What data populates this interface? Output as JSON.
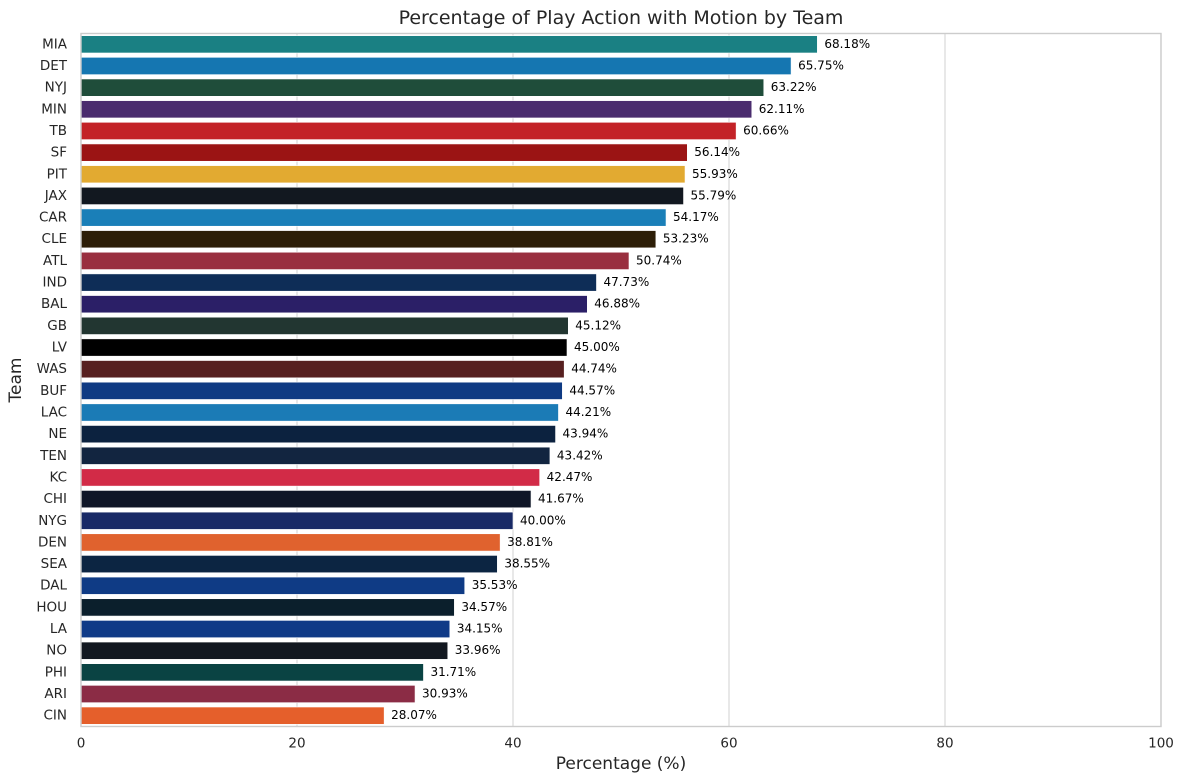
{
  "chart_data": {
    "type": "bar",
    "orientation": "horizontal",
    "title": "Percentage of Play Action with Motion by Team",
    "xlabel": "Percentage (%)",
    "ylabel": "Team",
    "xlim": [
      0,
      100
    ],
    "xticks": [
      "0",
      "20",
      "40",
      "60",
      "80",
      "100"
    ],
    "grid": "vertical",
    "categories": [
      "MIA",
      "DET",
      "NYJ",
      "MIN",
      "TB",
      "SF",
      "PIT",
      "JAX",
      "CAR",
      "CLE",
      "ATL",
      "IND",
      "BAL",
      "GB",
      "LV",
      "WAS",
      "BUF",
      "LAC",
      "NE",
      "TEN",
      "KC",
      "CHI",
      "NYG",
      "DEN",
      "SEA",
      "DAL",
      "HOU",
      "LA",
      "NO",
      "PHI",
      "ARI",
      "CIN"
    ],
    "values": [
      68.18,
      65.75,
      63.22,
      62.11,
      60.66,
      56.14,
      55.93,
      55.79,
      54.17,
      53.23,
      50.74,
      47.73,
      46.88,
      45.12,
      45.0,
      44.74,
      44.57,
      44.21,
      43.94,
      43.42,
      42.47,
      41.67,
      40.0,
      38.81,
      38.55,
      35.53,
      34.57,
      34.15,
      33.96,
      31.71,
      30.93,
      28.07
    ],
    "value_labels": [
      "68.18%",
      "65.75%",
      "63.22%",
      "62.11%",
      "60.66%",
      "56.14%",
      "55.93%",
      "55.79%",
      "54.17%",
      "53.23%",
      "50.74%",
      "47.73%",
      "46.88%",
      "45.12%",
      "45.00%",
      "44.74%",
      "44.57%",
      "44.21%",
      "43.94%",
      "43.42%",
      "42.47%",
      "41.67%",
      "40.00%",
      "38.81%",
      "38.55%",
      "35.53%",
      "34.57%",
      "34.15%",
      "33.96%",
      "31.71%",
      "30.93%",
      "28.07%"
    ],
    "colors": [
      "#1a8083",
      "#1576b1",
      "#1f4d3a",
      "#4a2c6e",
      "#c32227",
      "#9b1414",
      "#e2aa31",
      "#121820",
      "#1a7fb8",
      "#2d1e07",
      "#992f3f",
      "#0e2d57",
      "#2b1f67",
      "#223631",
      "#000000",
      "#572020",
      "#0f3a83",
      "#1b7bb6",
      "#0c223f",
      "#122540",
      "#d22b47",
      "#0f1627",
      "#192a66",
      "#e0622e",
      "#0c2542",
      "#0f3b85",
      "#0b1f2c",
      "#0f3a87",
      "#121820",
      "#0a4343",
      "#8b2c45",
      "#e55f2b"
    ]
  }
}
